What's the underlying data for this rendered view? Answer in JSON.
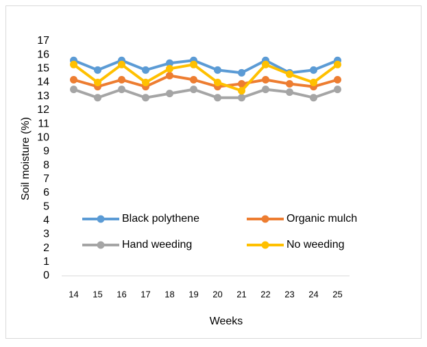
{
  "chart_data": {
    "type": "line",
    "y_label": "Soil moisture (%)",
    "x_label": "Weeks",
    "categories": [
      "14",
      "15",
      "16",
      "17",
      "18",
      "19",
      "20",
      "21",
      "22",
      "23",
      "24",
      "25"
    ],
    "series": [
      {
        "name": "Black polythene",
        "color": "#5b9bd5",
        "values": [
          15.6,
          14.9,
          15.6,
          14.9,
          15.4,
          15.6,
          14.9,
          14.7,
          15.6,
          14.7,
          14.9,
          15.6
        ]
      },
      {
        "name": "Organic mulch",
        "color": "#ed7d31",
        "values": [
          14.2,
          13.7,
          14.2,
          13.7,
          14.5,
          14.2,
          13.7,
          13.9,
          14.2,
          13.9,
          13.7,
          14.2
        ]
      },
      {
        "name": "Hand weeding",
        "color": "#a5a5a5",
        "values": [
          13.5,
          12.9,
          13.5,
          12.9,
          13.2,
          13.5,
          12.9,
          12.9,
          13.5,
          13.3,
          12.9,
          13.5
        ]
      },
      {
        "name": "No weeding",
        "color": "#ffc000",
        "values": [
          15.3,
          14.0,
          15.3,
          14.0,
          15.0,
          15.3,
          14.0,
          13.4,
          15.3,
          14.6,
          14.0,
          15.3
        ]
      }
    ],
    "ylim": [
      0,
      17
    ],
    "yticks": [
      0,
      1,
      2,
      3,
      4,
      5,
      6,
      7,
      8,
      9,
      10,
      11,
      12,
      13,
      14,
      15,
      16,
      17
    ],
    "grid": false,
    "legend": "inside"
  }
}
